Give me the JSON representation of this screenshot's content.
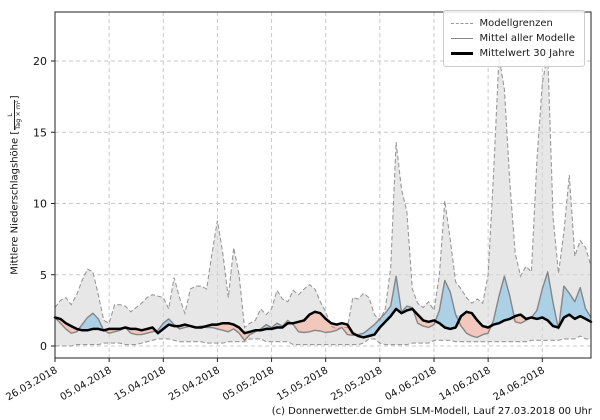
{
  "caption": "(c) Donnerwetter.de GmbH SLM-Modell, Lauf 27.03.2018 00 Uhr",
  "legend": {
    "items": [
      {
        "label": "Modellgrenzen"
      },
      {
        "label": "Mittel aller Modelle"
      },
      {
        "label": "Mittelwert 30 Jahre"
      }
    ]
  },
  "y_axis": {
    "label": "Mittlere Niederschlagshöhe",
    "unit_open": "[",
    "unit_numerator": "L",
    "unit_denominator": "Tag × m²",
    "unit_close": "]",
    "ticks": [
      0,
      5,
      10,
      15,
      20
    ]
  },
  "x_axis": {
    "tick_labels": [
      "26.03.2018",
      "05.04.2018",
      "15.04.2018",
      "25.04.2018",
      "05.05.2018",
      "15.05.2018",
      "25.05.2018",
      "04.06.2018",
      "14.06.2018",
      "24.06.2018"
    ],
    "tick_day_indices": [
      0,
      10,
      20,
      30,
      40,
      50,
      60,
      70,
      80,
      90
    ]
  },
  "chart_data": {
    "type": "line",
    "title": "",
    "xlabel": "",
    "ylabel": "Mittlere Niederschlagshöhe [L/(Tag × m²)]",
    "x_description": "days, daily values from 26.03.2018 to ~03.07.2018",
    "ylim": [
      -0.9,
      23.5
    ],
    "grid": true,
    "legend_position": "upper right",
    "colors": {
      "envelope_fill": "#d9d9d9",
      "envelope_edge": "#999999",
      "above_fill": "#a9d0e6",
      "below_fill": "#f2c5bb",
      "model_mean": "#868686",
      "mean_30y": "#000000",
      "grid": "#c9c9c9"
    },
    "series": [
      {
        "name": "Modellgrenzen (oberes Limit)",
        "role": "envelope_max",
        "values": [
          2.7,
          3.2,
          3.4,
          2.9,
          3.6,
          4.6,
          5.4,
          5.2,
          3.6,
          1.8,
          1.6,
          2.9,
          2.9,
          2.8,
          2.4,
          2.7,
          3.0,
          3.4,
          3.6,
          3.5,
          3.4,
          2.6,
          4.8,
          3.4,
          2.3,
          4.0,
          4.2,
          4.2,
          4.0,
          6.5,
          8.8,
          6.5,
          3.4,
          6.9,
          5.0,
          1.3,
          1.6,
          1.8,
          2.6,
          2.2,
          2.6,
          3.9,
          3.3,
          3.1,
          3.9,
          3.6,
          4.0,
          4.3,
          4.0,
          3.1,
          2.4,
          1.4,
          1.2,
          1.3,
          1.3,
          3.4,
          3.3,
          3.7,
          3.4,
          2.2,
          1.8,
          2.6,
          5.5,
          14.3,
          11.0,
          9.4,
          4.0,
          3.0,
          2.7,
          3.1,
          2.5,
          5.0,
          10.2,
          7.5,
          4.5,
          4.0,
          3.4,
          3.0,
          3.3,
          3.0,
          5.0,
          12.0,
          20.3,
          18.0,
          11.5,
          6.5,
          4.9,
          5.6,
          5.2,
          13.0,
          18.4,
          20.6,
          9.0,
          5.1,
          8.0,
          12.0,
          6.3,
          7.4,
          6.9,
          5.6
        ]
      },
      {
        "name": "Modellgrenzen (unteres Limit)",
        "role": "envelope_min",
        "values": [
          0.0,
          0.0,
          0.0,
          0.0,
          0.1,
          0.1,
          0.1,
          0.1,
          0.1,
          0.2,
          0.2,
          0.2,
          0.2,
          0.1,
          0.1,
          0.1,
          0.2,
          0.3,
          0.4,
          0.5,
          0.5,
          0.5,
          0.4,
          0.3,
          0.3,
          0.3,
          0.3,
          0.3,
          0.2,
          0.2,
          0.2,
          0.2,
          0.3,
          0.3,
          0.3,
          0.3,
          0.5,
          0.5,
          0.5,
          0.3,
          0.3,
          0.3,
          0.3,
          0.3,
          0.1,
          0.1,
          0.1,
          0.1,
          0.1,
          0.1,
          0.1,
          0.1,
          0.1,
          0.1,
          0.1,
          0.1,
          0.1,
          0.2,
          0.5,
          0.5,
          0.2,
          0.1,
          0.1,
          0.1,
          0.1,
          0.1,
          0.2,
          0.2,
          0.2,
          0.2,
          0.4,
          0.4,
          0.4,
          0.4,
          0.3,
          0.3,
          0.3,
          0.3,
          0.3,
          0.3,
          0.3,
          0.3,
          0.3,
          0.3,
          0.3,
          0.3,
          0.3,
          0.3,
          0.4,
          0.4,
          0.4,
          0.4,
          0.4,
          0.4,
          0.5,
          0.5,
          0.5,
          0.7,
          0.5,
          0.5
        ]
      },
      {
        "name": "Mittel aller Modelle",
        "role": "mean",
        "values": [
          2.0,
          1.6,
          1.2,
          0.9,
          1.0,
          1.5,
          2.0,
          2.3,
          1.9,
          1.1,
          0.9,
          1.0,
          1.1,
          1.3,
          0.9,
          0.8,
          0.8,
          0.9,
          1.0,
          1.1,
          1.6,
          1.9,
          1.5,
          1.2,
          1.3,
          1.4,
          1.3,
          1.4,
          1.3,
          1.3,
          1.2,
          1.1,
          1.0,
          1.2,
          0.9,
          0.4,
          0.8,
          1.0,
          1.2,
          1.5,
          1.3,
          1.6,
          1.4,
          1.8,
          1.5,
          1.0,
          0.95,
          1.0,
          1.1,
          1.05,
          0.95,
          1.0,
          1.1,
          1.3,
          0.8,
          0.75,
          0.8,
          0.9,
          1.2,
          1.5,
          1.9,
          2.3,
          2.8,
          4.9,
          2.4,
          2.8,
          2.7,
          1.6,
          1.4,
          1.3,
          1.5,
          2.5,
          4.6,
          3.8,
          2.2,
          1.4,
          0.9,
          0.7,
          0.6,
          0.8,
          0.9,
          1.8,
          3.5,
          4.9,
          3.5,
          1.7,
          1.6,
          1.8,
          2.0,
          2.5,
          4.0,
          5.2,
          3.0,
          1.2,
          4.2,
          3.7,
          3.1,
          4.1,
          2.6,
          2.0
        ]
      },
      {
        "name": "Mittelwert 30 Jahre",
        "role": "mean30",
        "values": [
          2.0,
          1.9,
          1.6,
          1.4,
          1.2,
          1.1,
          1.1,
          1.2,
          1.2,
          1.1,
          1.2,
          1.2,
          1.2,
          1.3,
          1.2,
          1.2,
          1.1,
          1.2,
          1.3,
          0.9,
          1.2,
          1.5,
          1.4,
          1.4,
          1.5,
          1.4,
          1.3,
          1.3,
          1.4,
          1.5,
          1.5,
          1.6,
          1.6,
          1.5,
          1.3,
          0.9,
          1.0,
          1.1,
          1.1,
          1.2,
          1.2,
          1.3,
          1.3,
          1.6,
          1.6,
          1.7,
          1.8,
          2.2,
          2.4,
          2.3,
          1.9,
          1.6,
          1.5,
          1.6,
          1.5,
          0.9,
          0.7,
          0.6,
          0.7,
          0.8,
          1.3,
          1.7,
          2.1,
          2.6,
          2.3,
          2.5,
          2.6,
          2.2,
          1.8,
          1.7,
          1.8,
          1.6,
          1.3,
          1.2,
          1.3,
          2.1,
          2.4,
          2.3,
          1.8,
          1.4,
          1.3,
          1.5,
          1.6,
          1.8,
          1.9,
          2.1,
          2.2,
          1.9,
          2.0,
          1.9,
          2.0,
          1.8,
          1.4,
          1.3,
          2.0,
          2.2,
          1.9,
          2.1,
          1.9,
          1.7
        ]
      }
    ]
  }
}
